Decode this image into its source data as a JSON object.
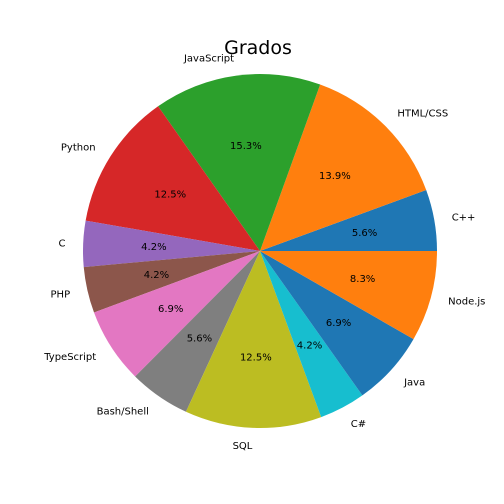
{
  "chart_data": {
    "type": "pie",
    "title": "Grados",
    "start_angle_deg": 0,
    "direction": "counterclockwise",
    "slices": [
      {
        "label": "C++",
        "percent": 5.6,
        "display": "5.6%",
        "color": "#1f77b4"
      },
      {
        "label": "HTML/CSS",
        "percent": 13.9,
        "display": "13.9%",
        "color": "#ff7f0e"
      },
      {
        "label": "JavaScript",
        "percent": 15.3,
        "display": "15.3%",
        "color": "#2ca02c"
      },
      {
        "label": "Python",
        "percent": 12.5,
        "display": "12.5%",
        "color": "#d62728"
      },
      {
        "label": "C",
        "percent": 4.2,
        "display": "4.2%",
        "color": "#9467bd"
      },
      {
        "label": "PHP",
        "percent": 4.2,
        "display": "4.2%",
        "color": "#8c564b"
      },
      {
        "label": "TypeScript",
        "percent": 6.9,
        "display": "6.9%",
        "color": "#e377c2"
      },
      {
        "label": "Bash/Shell",
        "percent": 5.6,
        "display": "5.6%",
        "color": "#7f7f7f"
      },
      {
        "label": "SQL",
        "percent": 12.5,
        "display": "12.5%",
        "color": "#bcbd22"
      },
      {
        "label": "C#",
        "percent": 4.2,
        "display": "4.2%",
        "color": "#17becf"
      },
      {
        "label": "Java",
        "percent": 6.9,
        "display": "6.9%",
        "color": "#1f77b4"
      },
      {
        "label": "Node.js",
        "percent": 8.3,
        "display": "8.3%",
        "color": "#ff7f0e"
      }
    ]
  }
}
